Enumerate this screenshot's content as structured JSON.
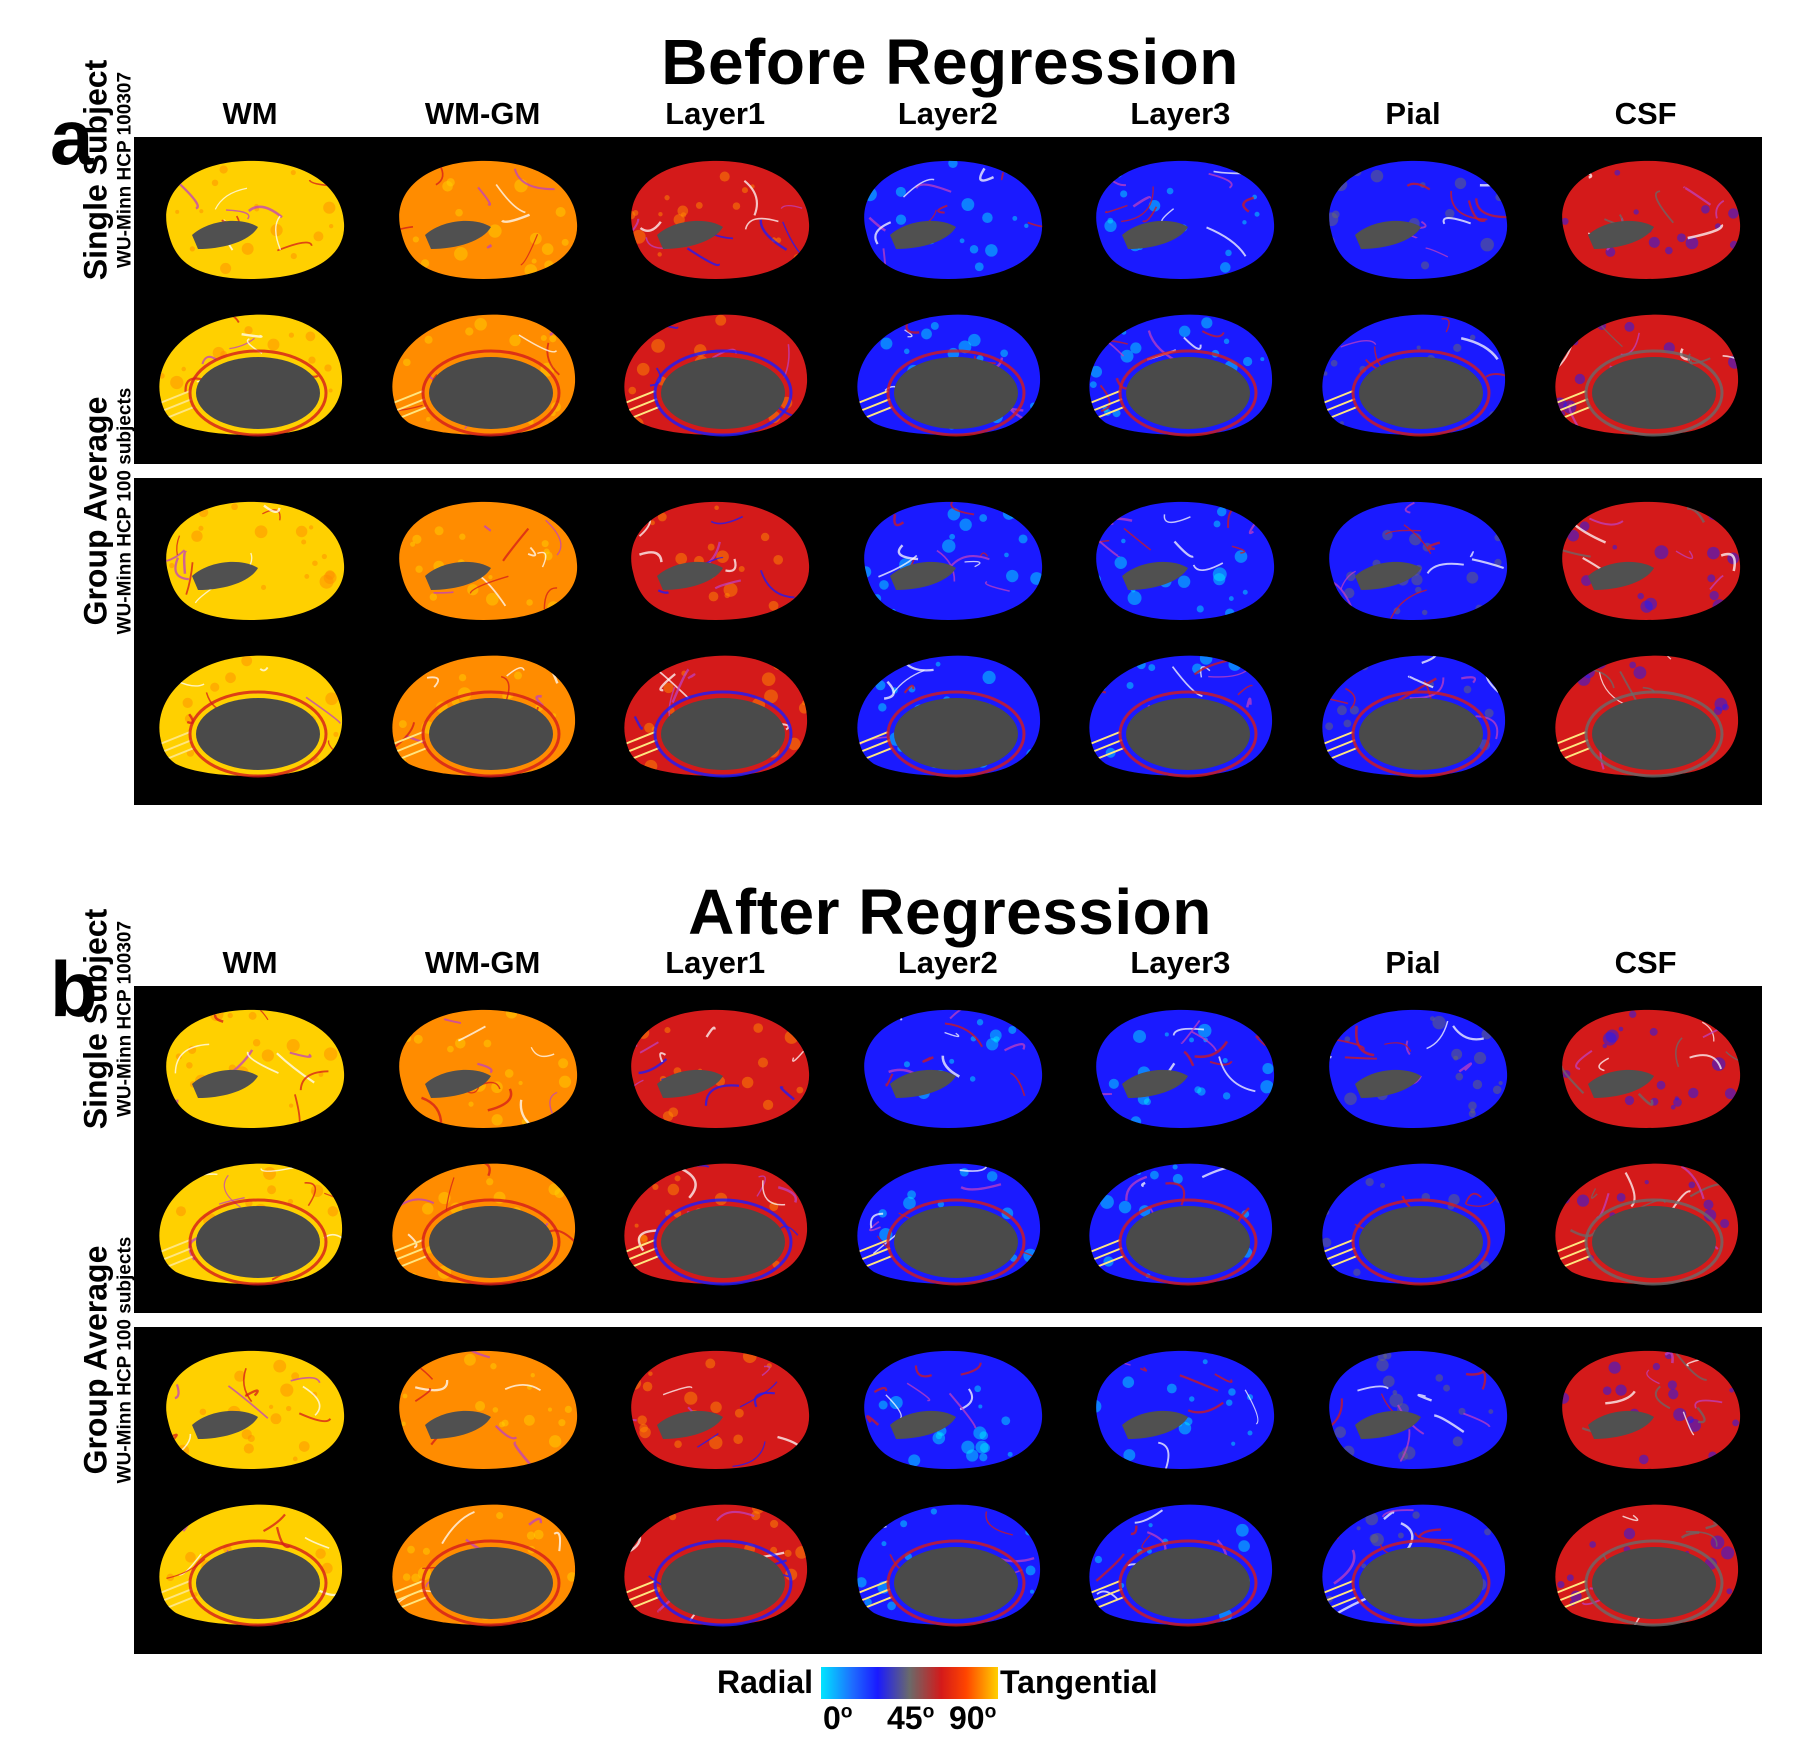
{
  "panel_a": {
    "letter": "a",
    "title": "Before Regression"
  },
  "panel_b": {
    "letter": "b",
    "title": "After Regression"
  },
  "columns": [
    "WM",
    "WM-GM",
    "Layer1",
    "Layer2",
    "Layer3",
    "Pial",
    "CSF"
  ],
  "rows": {
    "single": {
      "label": "Single Subject",
      "sublabel": "WU-Minn HCP 100307"
    },
    "group": {
      "label": "Group Average",
      "sublabel": "WU-Minn HCP 100 subjects"
    }
  },
  "legend": {
    "left": "Radial",
    "right": "Tangential",
    "tick0": "0",
    "tick45": "45",
    "tick90": "90",
    "deg": "o"
  },
  "colors": {
    "radial": "#00e5ff",
    "blue": "#1a1aff",
    "mid": "#6a6a6a",
    "red": "#d41a1a",
    "orange": "#ff8c00",
    "tangential": "#ffd000"
  }
}
